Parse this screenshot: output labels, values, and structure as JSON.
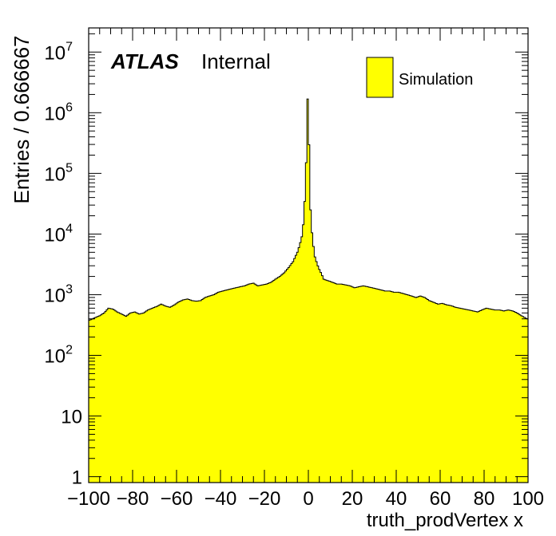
{
  "chart_data": {
    "type": "histogram",
    "title": "",
    "xlabel": "truth_prodVertex x",
    "ylabel": "Entries / 0.666667",
    "xlim": [
      -100,
      100
    ],
    "ylim": [
      0.8,
      25000000
    ],
    "ylog": true,
    "bin_width": 0.666667,
    "fill_color": "#ffff00",
    "line_color": "#000000",
    "x_ticks": [
      -100,
      -80,
      -60,
      -40,
      -20,
      0,
      20,
      40,
      60,
      80,
      100
    ],
    "x_tick_labels": [
      "−100",
      "−80",
      "−60",
      "−40",
      "−20",
      "0",
      "20",
      "40",
      "60",
      "80",
      "100"
    ],
    "y_ticks": [
      {
        "value": 1,
        "base": "1",
        "exp": ""
      },
      {
        "value": 10,
        "base": "10",
        "exp": ""
      },
      {
        "value": 100,
        "base": "10",
        "exp": "2"
      },
      {
        "value": 1000,
        "base": "10",
        "exp": "3"
      },
      {
        "value": 10000,
        "base": "10",
        "exp": "4"
      },
      {
        "value": 100000,
        "base": "10",
        "exp": "5"
      },
      {
        "value": 1000000,
        "base": "10",
        "exp": "6"
      },
      {
        "value": 10000000,
        "base": "10",
        "exp": "7"
      }
    ],
    "legend": {
      "position": "top-right",
      "entries": [
        {
          "name": "Simulation",
          "color": "#ffff00"
        }
      ]
    },
    "annotation": {
      "bold": "ATLAS",
      "normal": "Internal",
      "position": "top-left"
    },
    "series": [
      {
        "name": "Simulation",
        "x": [
          -99.5,
          -97,
          -95,
          -93,
          -91,
          -89,
          -87,
          -85,
          -83,
          -81,
          -79,
          -77,
          -75,
          -73,
          -71,
          -69,
          -67,
          -65,
          -63,
          -61,
          -59,
          -57,
          -55,
          -53,
          -51,
          -49,
          -47,
          -45,
          -43,
          -41,
          -39,
          -37,
          -35,
          -33,
          -31,
          -29,
          -27,
          -25,
          -23,
          -21,
          -19,
          -17,
          -15,
          -13,
          -11,
          -9,
          -7,
          -6,
          -5,
          -4,
          -3,
          -2.5,
          -2,
          -1.5,
          -1,
          -0.67,
          -0.33,
          0,
          0.33,
          0.67,
          1,
          1.5,
          2,
          2.5,
          3,
          4,
          5,
          6,
          7,
          9,
          11,
          13,
          15,
          17,
          19,
          21,
          23,
          25,
          27,
          29,
          31,
          33,
          35,
          37,
          39,
          41,
          43,
          45,
          47,
          49,
          51,
          53,
          55,
          57,
          59,
          61,
          63,
          65,
          67,
          69,
          71,
          73,
          75,
          77,
          79,
          81,
          83,
          85,
          87,
          89,
          91,
          93,
          95,
          97,
          99.5
        ],
        "y": [
          380,
          420,
          450,
          500,
          600,
          580,
          520,
          480,
          440,
          500,
          520,
          480,
          500,
          560,
          600,
          640,
          700,
          650,
          620,
          680,
          760,
          820,
          850,
          800,
          780,
          800,
          900,
          950,
          1000,
          1100,
          1150,
          1200,
          1250,
          1300,
          1350,
          1400,
          1500,
          1550,
          1400,
          1450,
          1500,
          1600,
          1800,
          2000,
          2300,
          2800,
          3500,
          4200,
          5000,
          6500,
          9000,
          12000,
          20000,
          45000,
          150000,
          500000,
          1700000,
          1700000,
          300000,
          80000,
          25000,
          12000,
          8000,
          5500,
          4200,
          3200,
          2600,
          2200,
          1800,
          1700,
          1600,
          1500,
          1500,
          1450,
          1400,
          1300,
          1350,
          1400,
          1350,
          1300,
          1250,
          1200,
          1150,
          1150,
          1100,
          1100,
          1050,
          1000,
          950,
          900,
          950,
          900,
          800,
          750,
          700,
          720,
          680,
          660,
          620,
          600,
          580,
          560,
          540,
          520,
          560,
          600,
          580,
          560,
          560,
          540,
          560,
          540,
          500,
          450,
          400
        ]
      }
    ]
  }
}
